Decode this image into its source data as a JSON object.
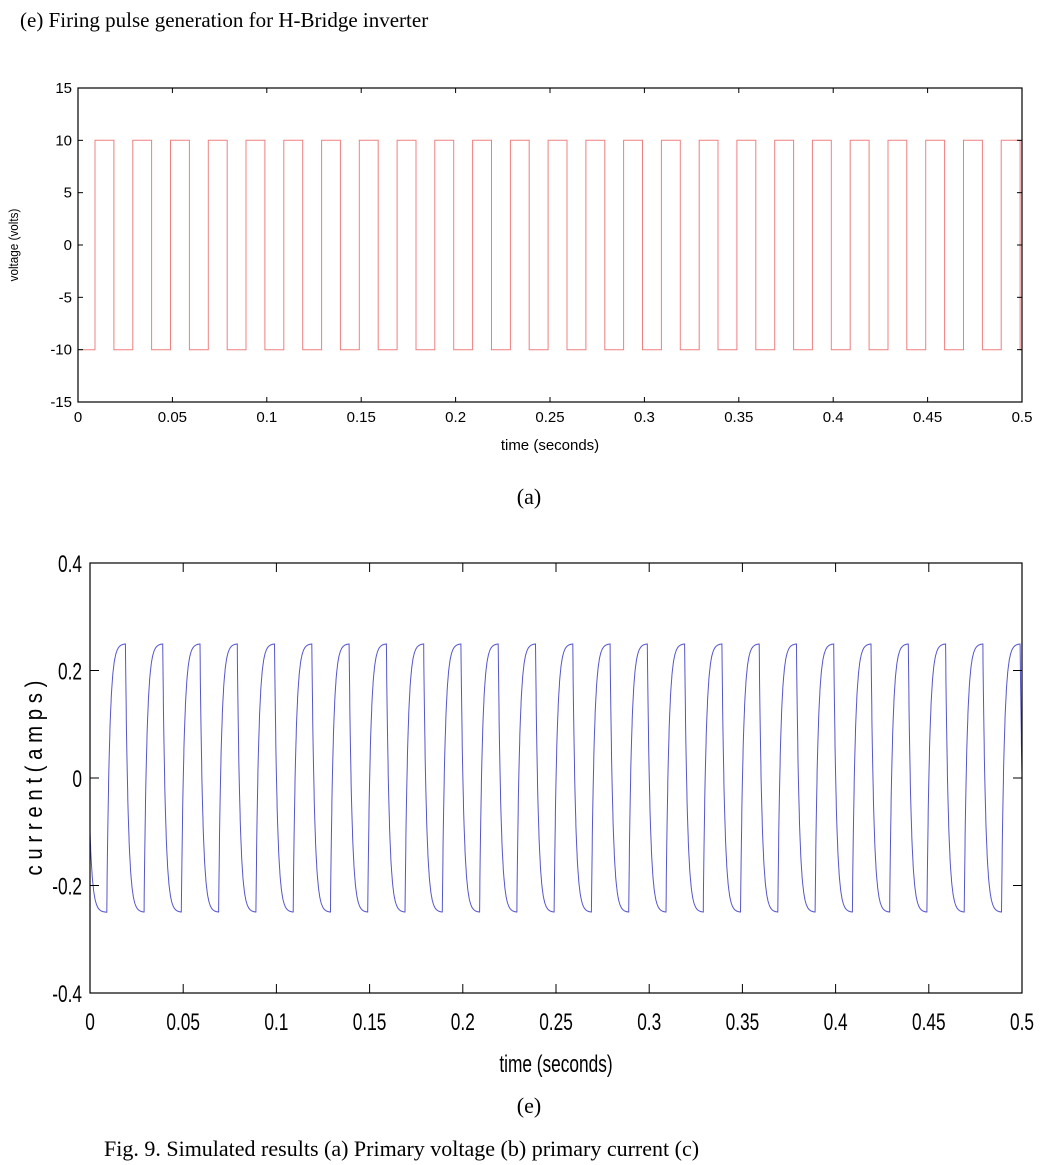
{
  "title": "(e) Firing pulse generation for H-Bridge inverter",
  "sub_a": "(a)",
  "sub_e": "(e)",
  "caption": "Fig. 9. Simulated results (a) Primary voltage (b) primary current (c)",
  "chart_data": [
    {
      "type": "line",
      "xlabel": "time (seconds)",
      "ylabel": "voltage (volts)",
      "xlim": [
        0,
        0.5
      ],
      "ylim": [
        -15,
        15
      ],
      "xticks": [
        "0",
        "0.05",
        "0.1",
        "0.15",
        "0.2",
        "0.25",
        "0.3",
        "0.35",
        "0.4",
        "0.45",
        "0.5"
      ],
      "yticks": [
        "15",
        "10",
        "5",
        "0",
        "-5",
        "-10",
        "-15"
      ],
      "grid": false,
      "series": [
        {
          "name": "firing pulse",
          "color": "#f08080",
          "waveform": "square",
          "amplitude": 10,
          "period": 0.02,
          "first_rise": 0.009,
          "duty": 0.5
        }
      ]
    },
    {
      "type": "line",
      "xlabel": "time (seconds)",
      "ylabel": "c u r r e n t  ( a m p s )",
      "xlim": [
        0,
        0.5
      ],
      "ylim": [
        -0.4,
        0.4
      ],
      "xticks": [
        "0",
        "0.05",
        "0.1",
        "0.15",
        "0.2",
        "0.25",
        "0.3",
        "0.35",
        "0.4",
        "0.45",
        "0.5"
      ],
      "yticks": [
        "0.4",
        "0.2",
        "0",
        "-0.2",
        "-0.4"
      ],
      "grid": false,
      "series": [
        {
          "name": "current",
          "color": "#5555cc",
          "waveform": "rl-square",
          "amplitude": 0.25,
          "period": 0.02,
          "first_rise": 0.009,
          "tau": 0.0015
        }
      ]
    }
  ]
}
